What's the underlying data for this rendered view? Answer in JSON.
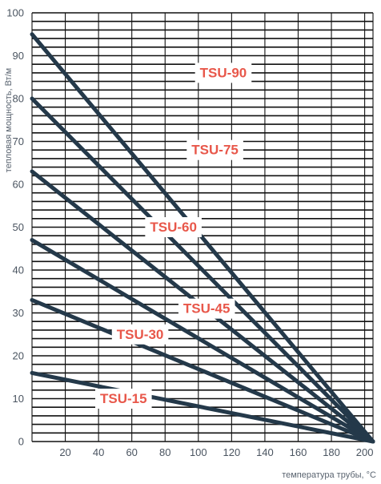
{
  "chart_data": {
    "type": "line",
    "xlabel": "температура трубы, °C",
    "ylabel": "тепловая мощность, Вт/м",
    "xlim": [
      0,
      205
    ],
    "ylim": [
      0,
      100
    ],
    "x_ticks": [
      20,
      40,
      60,
      80,
      100,
      120,
      140,
      160,
      180,
      200
    ],
    "y_ticks": [
      0,
      10,
      20,
      30,
      40,
      50,
      60,
      70,
      80,
      90,
      100
    ],
    "grid": true,
    "legend": "none",
    "colors": {
      "line": "#24394a",
      "label": "#e8574a",
      "grid": "#111111",
      "text": "#4a5460"
    },
    "series": [
      {
        "name": "TSU-90",
        "x": [
          0,
          205
        ],
        "y": [
          95,
          0
        ],
        "label_at": [
          115,
          86
        ]
      },
      {
        "name": "TSU-75",
        "x": [
          0,
          205
        ],
        "y": [
          80,
          0
        ],
        "label_at": [
          110,
          68
        ]
      },
      {
        "name": "TSU-60",
        "x": [
          0,
          205
        ],
        "y": [
          63,
          0
        ],
        "label_at": [
          85,
          50
        ]
      },
      {
        "name": "TSU-45",
        "x": [
          0,
          205
        ],
        "y": [
          47,
          0
        ],
        "label_at": [
          105,
          31
        ]
      },
      {
        "name": "TSU-30",
        "x": [
          0,
          205
        ],
        "y": [
          33,
          0
        ],
        "label_at": [
          65,
          25
        ]
      },
      {
        "name": "TSU-15",
        "x": [
          0,
          205
        ],
        "y": [
          16,
          0
        ],
        "label_at": [
          55,
          10
        ]
      }
    ]
  }
}
